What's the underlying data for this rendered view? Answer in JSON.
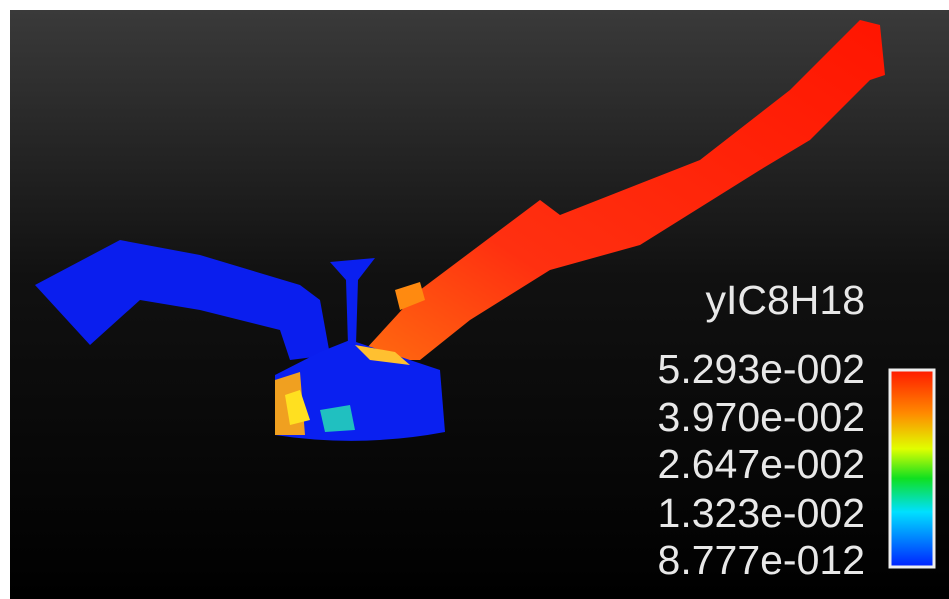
{
  "legend": {
    "title": "yIC8H18",
    "labels": [
      "5.293e-002",
      "3.970e-002",
      "2.647e-002",
      "1.323e-002",
      "8.777e-012"
    ]
  }
}
